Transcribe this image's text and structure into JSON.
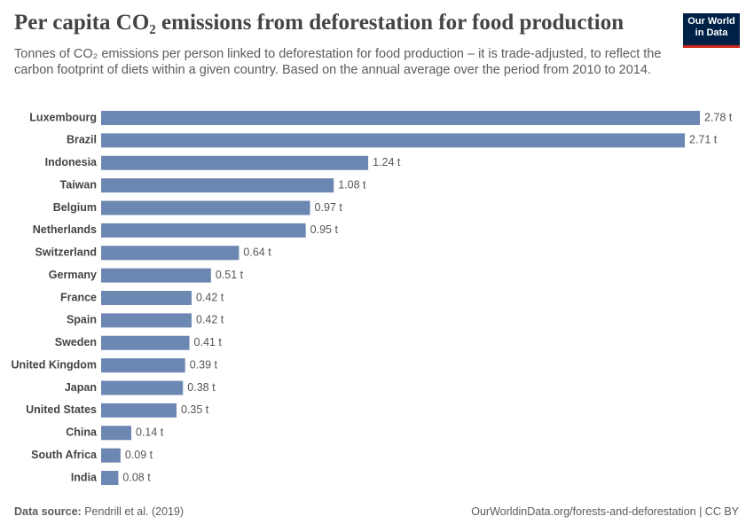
{
  "chart_data": {
    "type": "bar",
    "orientation": "horizontal",
    "title": "Per capita CO₂ emissions from deforestation for food production",
    "subtitle": "Tonnes of CO₂ emissions per person linked to deforestation for food production – it is trade-adjusted, to reflect the carbon footprint of diets within a given country. Based on the annual average over the period from 2010 to 2014.",
    "categories": [
      "Luxembourg",
      "Brazil",
      "Indonesia",
      "Taiwan",
      "Belgium",
      "Netherlands",
      "Switzerland",
      "Germany",
      "France",
      "Spain",
      "Sweden",
      "United Kingdom",
      "Japan",
      "United States",
      "China",
      "South Africa",
      "India"
    ],
    "values": [
      2.78,
      2.71,
      1.24,
      1.08,
      0.97,
      0.95,
      0.64,
      0.51,
      0.42,
      0.42,
      0.41,
      0.39,
      0.38,
      0.35,
      0.14,
      0.09,
      0.08
    ],
    "value_labels": [
      "2.78 t",
      "2.71 t",
      "1.24 t",
      "1.08 t",
      "0.97 t",
      "0.95 t",
      "0.64 t",
      "0.51 t",
      "0.42 t",
      "0.42 t",
      "0.41 t",
      "0.39 t",
      "0.38 t",
      "0.35 t",
      "0.14 t",
      "0.09 t",
      "0.08 t"
    ],
    "color": "#6d87b3",
    "source_label": "Data source:",
    "source": "Pendrill et al. (2019)",
    "footer_right": "OurWorldinData.org/forests-and-deforestation | CC BY",
    "logo": [
      "Our World",
      "in Data"
    ]
  }
}
